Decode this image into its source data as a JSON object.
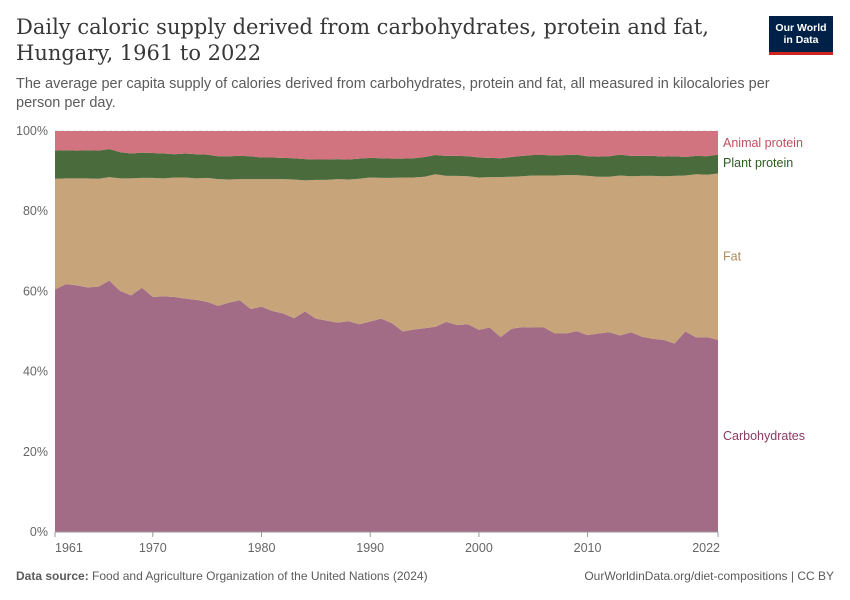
{
  "header": {
    "title": "Daily caloric supply derived from carbohydrates, protein and fat, Hungary, 1961 to 2022",
    "subtitle": "The average per capita supply of calories derived from carbohydrates, protein and fat, all measured in kilocalories per person per day.",
    "logo_line1": "Our World",
    "logo_line2": "in Data"
  },
  "footer": {
    "source_label": "Data source:",
    "source_text": "Food and Agriculture Organization of the United Nations (2024)",
    "url": "OurWorldinData.org/diet-compositions | CC BY"
  },
  "colors": {
    "Carbohydrates": "#a26b86",
    "Fat": "#c8a47a",
    "Plant protein": "#4a6b3c",
    "Animal protein": "#d1747f",
    "label_Carbohydrates": "#8b3a62",
    "label_Fat": "#b08a5a",
    "label_Plant protein": "#2c5b1f",
    "label_Animal protein": "#c04e5e"
  },
  "chart_data": {
    "type": "area",
    "stacked": true,
    "normalized": true,
    "x": [
      1961,
      1962,
      1963,
      1964,
      1965,
      1966,
      1967,
      1968,
      1969,
      1970,
      1971,
      1972,
      1973,
      1974,
      1975,
      1976,
      1977,
      1978,
      1979,
      1980,
      1981,
      1982,
      1983,
      1984,
      1985,
      1986,
      1987,
      1988,
      1989,
      1990,
      1991,
      1992,
      1993,
      1994,
      1995,
      1996,
      1997,
      1998,
      1999,
      2000,
      2001,
      2002,
      2003,
      2004,
      2005,
      2006,
      2007,
      2008,
      2009,
      2010,
      2011,
      2012,
      2013,
      2014,
      2015,
      2016,
      2017,
      2018,
      2019,
      2020,
      2021,
      2022
    ],
    "series": [
      {
        "name": "Carbohydrates",
        "values": [
          60.5,
          61.8,
          61.5,
          61.0,
          61.2,
          62.7,
          60.1,
          59.0,
          60.9,
          58.6,
          58.8,
          58.6,
          58.2,
          57.9,
          57.4,
          56.4,
          57.2,
          57.8,
          55.6,
          56.2,
          55.1,
          54.5,
          53.3,
          55.0,
          53.2,
          52.7,
          52.2,
          52.6,
          51.8,
          52.5,
          53.2,
          52.1,
          50.0,
          50.5,
          50.8,
          51.2,
          52.4,
          51.6,
          51.8,
          50.4,
          51.0,
          48.6,
          50.7,
          51.1,
          51.0,
          51.0,
          49.5,
          49.5,
          50.1,
          49.1,
          49.5,
          49.8,
          49.0,
          49.8,
          48.7,
          48.2,
          47.9,
          47.0,
          50.0,
          48.5,
          48.6,
          47.9
        ]
      },
      {
        "name": "Fat",
        "values": [
          27.6,
          26.4,
          26.7,
          27.2,
          26.9,
          25.8,
          28.1,
          29.2,
          27.4,
          29.7,
          29.4,
          29.8,
          30.2,
          30.3,
          30.9,
          31.6,
          30.7,
          30.2,
          32.4,
          31.8,
          32.9,
          33.5,
          34.6,
          32.7,
          34.6,
          35.1,
          35.8,
          35.3,
          36.3,
          35.9,
          35.1,
          36.2,
          38.4,
          37.9,
          37.8,
          38.0,
          36.4,
          37.2,
          36.9,
          38.0,
          37.5,
          39.9,
          37.9,
          37.6,
          37.9,
          37.9,
          39.4,
          39.5,
          38.9,
          39.7,
          39.1,
          38.8,
          39.9,
          38.9,
          40.1,
          40.6,
          40.8,
          41.8,
          38.9,
          40.7,
          40.5,
          41.5
        ]
      },
      {
        "name": "Plant protein",
        "values": [
          7.0,
          7.0,
          6.9,
          7.0,
          7.0,
          7.0,
          6.5,
          6.2,
          6.3,
          6.2,
          6.2,
          5.8,
          6.0,
          6.0,
          5.8,
          5.7,
          5.8,
          5.8,
          5.7,
          5.4,
          5.4,
          5.3,
          5.3,
          5.3,
          5.1,
          5.1,
          5.0,
          5.0,
          5.0,
          4.9,
          4.9,
          4.8,
          4.7,
          4.8,
          4.9,
          4.8,
          5.0,
          5.0,
          5.0,
          5.0,
          4.8,
          4.7,
          4.9,
          5.1,
          5.1,
          5.1,
          5.0,
          5.0,
          5.1,
          4.9,
          5.0,
          5.1,
          5.2,
          5.1,
          5.0,
          5.0,
          4.9,
          4.9,
          4.6,
          4.6,
          4.6,
          4.7
        ]
      },
      {
        "name": "Animal protein",
        "values": [
          4.9,
          4.8,
          4.9,
          4.8,
          4.9,
          4.5,
          5.3,
          5.6,
          5.4,
          5.5,
          5.6,
          5.8,
          5.6,
          5.8,
          5.9,
          6.3,
          6.3,
          6.2,
          6.3,
          6.6,
          6.6,
          6.7,
          6.8,
          7.0,
          7.1,
          7.1,
          7.0,
          7.1,
          6.9,
          6.7,
          6.8,
          6.9,
          6.9,
          6.8,
          6.5,
          6.0,
          6.2,
          6.2,
          6.3,
          6.6,
          6.7,
          6.8,
          6.5,
          6.2,
          6.0,
          6.0,
          6.1,
          6.0,
          5.9,
          6.3,
          6.4,
          6.3,
          5.9,
          6.2,
          6.2,
          6.2,
          6.4,
          6.3,
          6.5,
          6.2,
          6.3,
          5.9
        ]
      }
    ],
    "y_range": [
      0,
      100
    ],
    "y_ticks": [
      "0%",
      "20%",
      "40%",
      "60%",
      "80%",
      "100%"
    ],
    "x_ticks": [
      "1961",
      "1970",
      "1980",
      "1990",
      "2000",
      "2010",
      "2022"
    ],
    "legend_position": "right",
    "grid": "horizontal dotted"
  }
}
